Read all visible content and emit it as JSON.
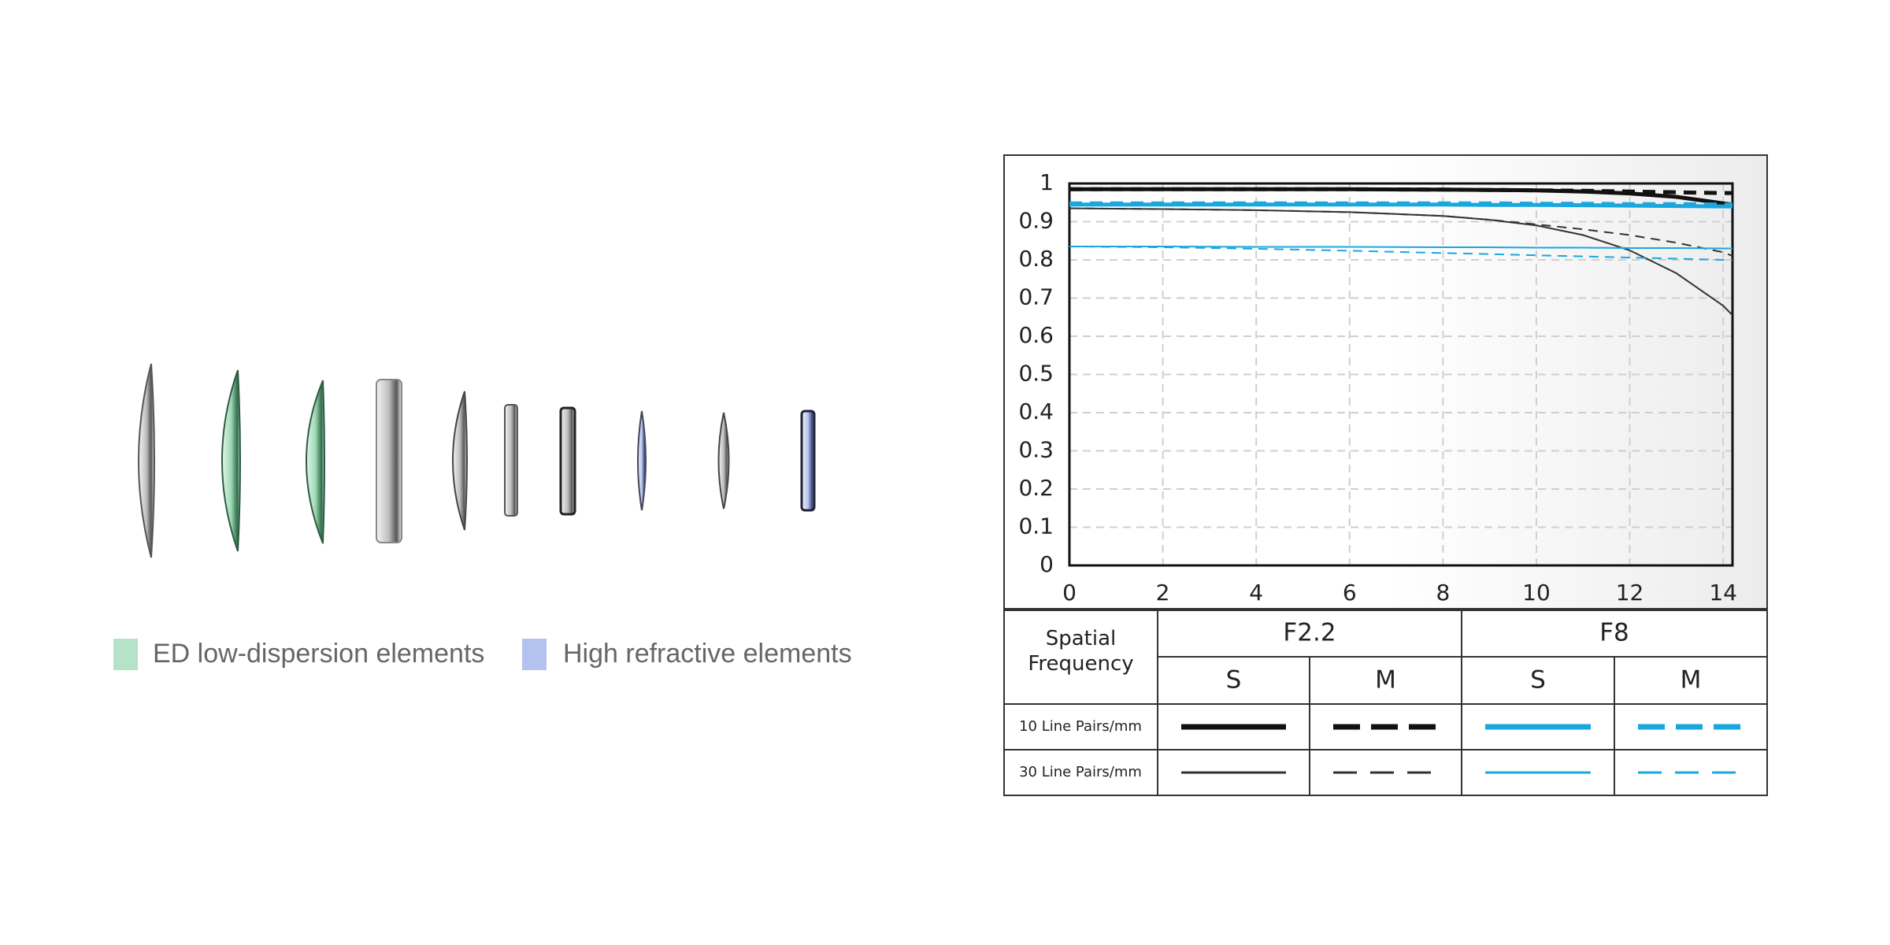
{
  "chart_data": {
    "type": "line",
    "x": [
      0,
      2,
      4,
      6,
      8,
      9,
      10,
      11,
      12,
      13,
      14,
      14.2
    ],
    "xlim": [
      0,
      14.2
    ],
    "xticks": [
      0,
      2,
      4,
      6,
      8,
      10,
      12,
      14
    ],
    "ylim": [
      0,
      1
    ],
    "yticks": [
      0,
      0.1,
      0.2,
      0.3,
      0.4,
      0.5,
      0.6,
      0.7,
      0.8,
      0.9,
      1
    ],
    "grid": true,
    "series": [
      {
        "color": "#111111",
        "dash": false,
        "values": [
          0.985,
          0.985,
          0.985,
          0.985,
          0.984,
          0.983,
          0.982,
          0.979,
          0.974,
          0.965,
          0.948,
          0.945
        ]
      },
      {
        "color": "#111111",
        "dash": true,
        "values": [
          0.985,
          0.985,
          0.985,
          0.985,
          0.984,
          0.983,
          0.982,
          0.981,
          0.979,
          0.977,
          0.975,
          0.975
        ]
      },
      {
        "color": "#1aa7de",
        "dash": false,
        "values": [
          0.945,
          0.945,
          0.945,
          0.945,
          0.945,
          0.944,
          0.944,
          0.943,
          0.942,
          0.941,
          0.94,
          0.94
        ]
      },
      {
        "color": "#1aa7de",
        "dash": true,
        "values": [
          0.948,
          0.948,
          0.948,
          0.948,
          0.948,
          0.948,
          0.947,
          0.947,
          0.946,
          0.946,
          0.945,
          0.945
        ]
      },
      {
        "color": "#333333",
        "dash": false,
        "values": [
          0.935,
          0.933,
          0.93,
          0.925,
          0.915,
          0.905,
          0.89,
          0.865,
          0.825,
          0.765,
          0.68,
          0.655
        ]
      },
      {
        "color": "#333333",
        "dash": true,
        "values": [
          0.935,
          0.933,
          0.93,
          0.925,
          0.915,
          0.905,
          0.893,
          0.88,
          0.865,
          0.845,
          0.82,
          0.81
        ]
      },
      {
        "color": "#1aa7de",
        "dash": false,
        "values": [
          0.835,
          0.835,
          0.834,
          0.834,
          0.833,
          0.833,
          0.832,
          0.832,
          0.831,
          0.831,
          0.83,
          0.83
        ]
      },
      {
        "color": "#1aa7de",
        "dash": true,
        "values": [
          0.835,
          0.833,
          0.829,
          0.824,
          0.818,
          0.815,
          0.812,
          0.809,
          0.806,
          0.803,
          0.8,
          0.799
        ]
      }
    ]
  },
  "legend_table": {
    "header": "Spatial Frequency",
    "apertures": [
      "F2.2",
      "F8"
    ],
    "orientations": [
      "S",
      "M",
      "S",
      "M"
    ],
    "rows": [
      "10 Line Pairs/mm",
      "30 Line Pairs/mm"
    ]
  },
  "lens_legend": [
    "ED low-dispersion elements",
    "High refractive elements"
  ]
}
